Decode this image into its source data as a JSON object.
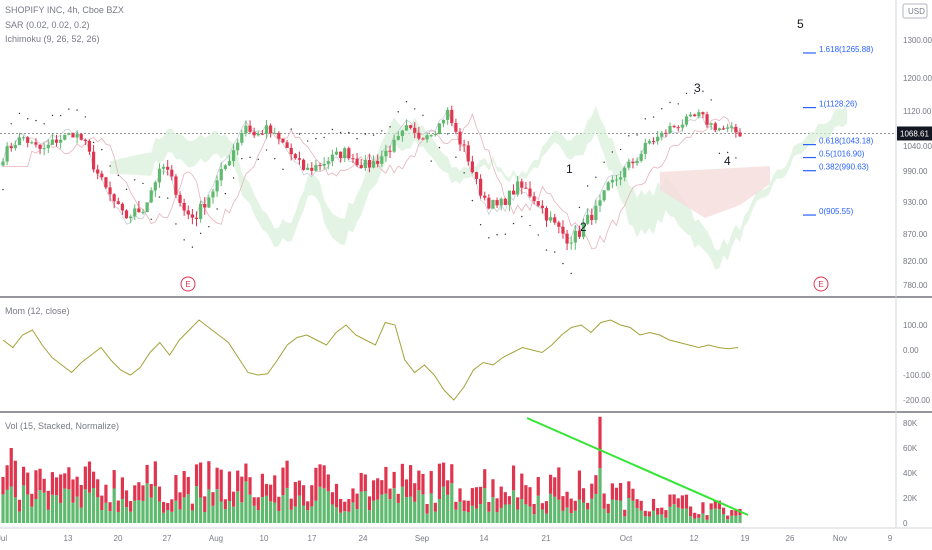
{
  "header": {
    "title": "SHOPIFY INC, 4h, Cboe BZX",
    "indicators": [
      "SAR (0.02, 0.02, 0.2)",
      "Ichimoku (9, 26, 52, 26)"
    ],
    "currency_badge": "USD"
  },
  "colors": {
    "up": "#5fb96f",
    "down": "#e0354f",
    "momentum": "#a3a23a",
    "trendline": "#32e632",
    "fib": "#2962ff",
    "cloud_green": "#d7efd9",
    "cloud_red": "#f6dcdc",
    "sar": "#333333"
  },
  "chart_data": [
    {
      "type": "candlestick",
      "title": "SHOPIFY INC, 4h, Cboe BZX",
      "y_ticks": [
        "1300.00",
        "1200.00",
        "1120.00",
        "1040.00",
        "990.00",
        "930.00",
        "870.00",
        "820.00",
        "780.00"
      ],
      "x_ticks": [
        "Jul",
        "13",
        "20",
        "27",
        "Aug",
        "10",
        "17",
        "24",
        "Sep",
        "14",
        "21",
        "Oct",
        "12",
        "19",
        "26",
        "Nov",
        "9"
      ],
      "last_price": "1068.61",
      "approx_closes": [
        1020,
        1045,
        1060,
        1040,
        1030,
        1050,
        1060,
        1070,
        1050,
        1000,
        960,
        930,
        900,
        910,
        920,
        970,
        1000,
        960,
        910,
        900,
        930,
        960,
        1000,
        1040,
        1090,
        1060,
        1080,
        1060,
        1040,
        1010,
        990,
        1000,
        1010,
        1020,
        1030,
        1010,
        1000,
        1010,
        1030,
        1050,
        1080,
        1060,
        1070,
        1080,
        1120,
        1060,
        1020,
        960,
        930,
        920,
        940,
        960,
        950,
        930,
        900,
        880,
        860,
        870,
        900,
        920,
        960,
        980,
        1000,
        1020,
        1050,
        1060,
        1080,
        1090,
        1100,
        1110,
        1090,
        1080,
        1075,
        1069
      ],
      "fib_levels": [
        {
          "label": "1.618(1265.88)",
          "value": 1265.88
        },
        {
          "label": "1(1128.26)",
          "value": 1128.26
        },
        {
          "label": "0.618(1043.18)",
          "value": 1043.18
        },
        {
          "label": "0.5(1016.90)",
          "value": 1016.9
        },
        {
          "label": "0.382(990.63)",
          "value": 990.63
        },
        {
          "label": "0(905.55)",
          "value": 905.55
        }
      ],
      "wave_labels": [
        "1",
        "2",
        "3",
        "4",
        "5"
      ],
      "event_markers": [
        "E",
        "E"
      ]
    },
    {
      "type": "line",
      "title": "Mom (12, close)",
      "y_ticks": [
        "100.00",
        "0.00",
        "-100.00",
        "-200.00"
      ],
      "values": [
        40,
        10,
        60,
        80,
        20,
        -30,
        -60,
        -90,
        -50,
        -20,
        10,
        -40,
        -80,
        -100,
        -70,
        -10,
        30,
        -20,
        40,
        80,
        120,
        90,
        60,
        30,
        -30,
        -90,
        -100,
        -95,
        -40,
        20,
        50,
        60,
        40,
        20,
        70,
        100,
        60,
        40,
        20,
        110,
        100,
        -40,
        -90,
        -60,
        -100,
        -160,
        -200,
        -150,
        -80,
        -50,
        -60,
        -30,
        -10,
        10,
        0,
        -10,
        20,
        60,
        90,
        100,
        70,
        110,
        120,
        100,
        90,
        60,
        70,
        60,
        40,
        30,
        20,
        10,
        20,
        10,
        5,
        10
      ]
    },
    {
      "type": "bar",
      "title": "Vol (15, Stacked, Normalize)",
      "stacked": true,
      "y_ticks": [
        "80K",
        "60K",
        "40K",
        "20K",
        "0"
      ],
      "series_colors": [
        "#5fb96f",
        "#e0354f"
      ]
    }
  ]
}
